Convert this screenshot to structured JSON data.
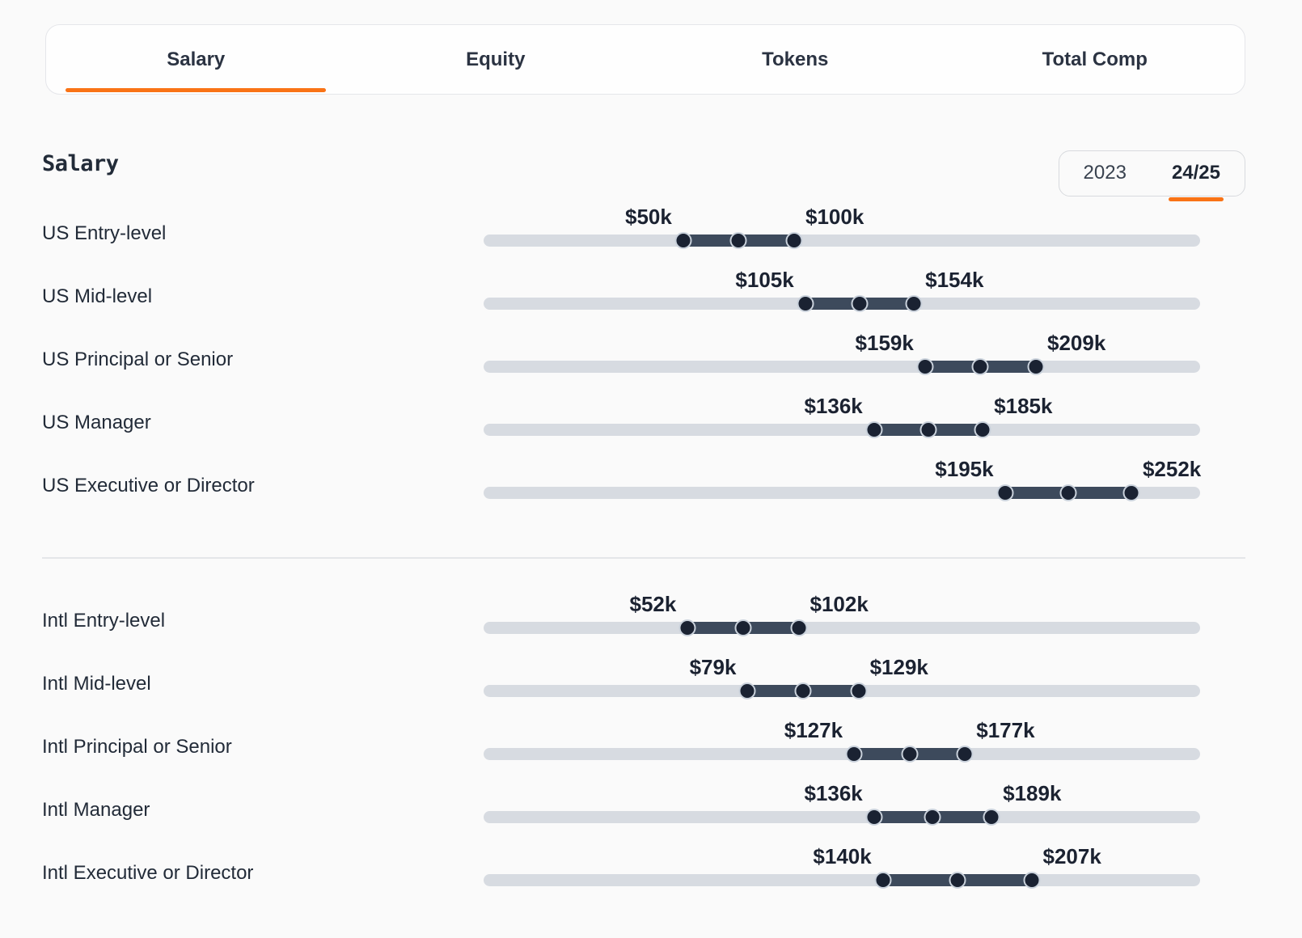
{
  "tabs": {
    "items": [
      {
        "label": "Salary",
        "active": true
      },
      {
        "label": "Equity",
        "active": false
      },
      {
        "label": "Tokens",
        "active": false
      },
      {
        "label": "Total Comp",
        "active": false
      }
    ]
  },
  "section": {
    "title": "Salary"
  },
  "year_toggle": {
    "options": [
      {
        "label": "2023",
        "selected": false
      },
      {
        "label": "24/25",
        "selected": true
      }
    ]
  },
  "colors": {
    "accent_orange": "#f97316",
    "track_gray": "#d7dbe1",
    "range_fill": "#3d4a5c",
    "handle_dark": "#1a2232"
  },
  "chart_data": {
    "type": "range",
    "title": "Salary",
    "unit": "USD thousands",
    "axis_range_k": [
      -40,
      283
    ],
    "legend_position": "none",
    "groups": [
      {
        "name": "US",
        "rows": [
          {
            "label": "US Entry-level",
            "min": 50,
            "max": 100,
            "min_label": "$50k",
            "max_label": "$100k"
          },
          {
            "label": "US Mid-level",
            "min": 105,
            "max": 154,
            "min_label": "$105k",
            "max_label": "$154k"
          },
          {
            "label": "US Principal or Senior",
            "min": 159,
            "max": 209,
            "min_label": "$159k",
            "max_label": "$209k"
          },
          {
            "label": "US Manager",
            "min": 136,
            "max": 185,
            "min_label": "$136k",
            "max_label": "$185k"
          },
          {
            "label": "US Executive or Director",
            "min": 195,
            "max": 252,
            "min_label": "$195k",
            "max_label": "$252k"
          }
        ]
      },
      {
        "name": "Intl",
        "rows": [
          {
            "label": "Intl Entry-level",
            "min": 52,
            "max": 102,
            "min_label": "$52k",
            "max_label": "$102k"
          },
          {
            "label": "Intl Mid-level",
            "min": 79,
            "max": 129,
            "min_label": "$79k",
            "max_label": "$129k"
          },
          {
            "label": "Intl Principal or Senior",
            "min": 127,
            "max": 177,
            "min_label": "$127k",
            "max_label": "$177k"
          },
          {
            "label": "Intl Manager",
            "min": 136,
            "max": 189,
            "min_label": "$136k",
            "max_label": "$189k"
          },
          {
            "label": "Intl Executive or Director",
            "min": 140,
            "max": 207,
            "min_label": "$140k",
            "max_label": "$207k"
          }
        ]
      }
    ]
  }
}
